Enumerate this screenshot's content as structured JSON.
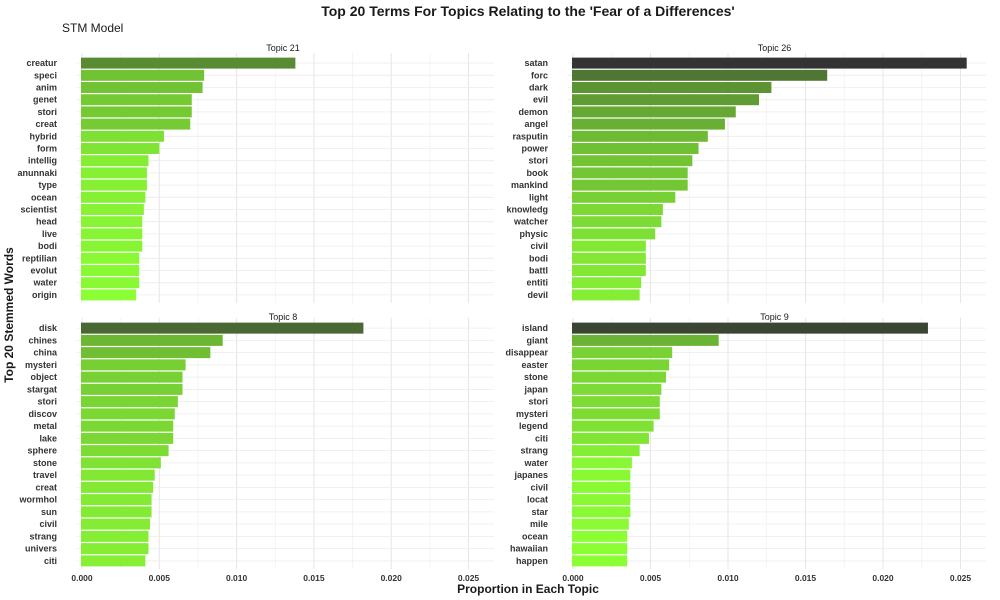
{
  "chart_data": {
    "type": "bar",
    "orientation": "horizontal",
    "title": "Top 20 Terms For Topics Relating to the 'Fear of a Differences'",
    "subtitle": "STM Model",
    "xlabel": "Proportion in Each Topic",
    "ylabel": "Top 20 Stemmed Words",
    "xlim": [
      0,
      0.026
    ],
    "xticks": [
      "0.000",
      "0.005",
      "0.010",
      "0.015",
      "0.020",
      "0.025"
    ],
    "xtick_values": [
      0,
      0.005,
      0.01,
      0.015,
      0.02,
      0.025
    ],
    "grid": true,
    "color_scale": {
      "low": "#8cff34",
      "high": "#333333"
    },
    "panels": [
      {
        "topic": "Topic 21",
        "terms": [
          "creatur",
          "speci",
          "anim",
          "genet",
          "stori",
          "creat",
          "hybrid",
          "form",
          "intellig",
          "anunnaki",
          "type",
          "ocean",
          "scientist",
          "head",
          "live",
          "bodi",
          "reptilian",
          "evolut",
          "water",
          "origin"
        ],
        "values": [
          0.0138,
          0.0079,
          0.0078,
          0.0071,
          0.0071,
          0.007,
          0.0053,
          0.005,
          0.0043,
          0.0042,
          0.0042,
          0.0041,
          0.004,
          0.0039,
          0.0039,
          0.0039,
          0.0037,
          0.0037,
          0.0037,
          0.0035
        ]
      },
      {
        "topic": "Topic 26",
        "terms": [
          "satan",
          "forc",
          "dark",
          "evil",
          "demon",
          "angel",
          "rasputin",
          "power",
          "stori",
          "book",
          "mankind",
          "light",
          "knowledg",
          "watcher",
          "physic",
          "civil",
          "bodi",
          "battl",
          "entiti",
          "devil"
        ],
        "values": [
          0.0254,
          0.0164,
          0.0128,
          0.012,
          0.0105,
          0.0098,
          0.0087,
          0.0081,
          0.0077,
          0.0074,
          0.0074,
          0.0066,
          0.0058,
          0.0057,
          0.0053,
          0.0047,
          0.0047,
          0.0047,
          0.0044,
          0.0043
        ]
      },
      {
        "topic": "Topic 8",
        "terms": [
          "disk",
          "chines",
          "china",
          "mysteri",
          "object",
          "stargat",
          "stori",
          "discov",
          "metal",
          "lake",
          "sphere",
          "stone",
          "travel",
          "creat",
          "wormhol",
          "sun",
          "civil",
          "strang",
          "univers",
          "citi"
        ],
        "values": [
          0.0182,
          0.0091,
          0.0083,
          0.0067,
          0.0065,
          0.0065,
          0.0062,
          0.006,
          0.0059,
          0.0059,
          0.0056,
          0.0051,
          0.0047,
          0.0046,
          0.0045,
          0.0045,
          0.0044,
          0.0043,
          0.0043,
          0.0041
        ]
      },
      {
        "topic": "Topic 9",
        "terms": [
          "island",
          "giant",
          "disappear",
          "easter",
          "stone",
          "japan",
          "stori",
          "mysteri",
          "legend",
          "citi",
          "strang",
          "water",
          "japanes",
          "civil",
          "locat",
          "star",
          "mile",
          "ocean",
          "hawaiian",
          "happen"
        ],
        "values": [
          0.0229,
          0.0094,
          0.0064,
          0.0062,
          0.006,
          0.0057,
          0.0056,
          0.0056,
          0.0052,
          0.0049,
          0.0043,
          0.0038,
          0.0037,
          0.0037,
          0.0037,
          0.0037,
          0.0036,
          0.0035,
          0.0035,
          0.0035
        ]
      }
    ]
  }
}
